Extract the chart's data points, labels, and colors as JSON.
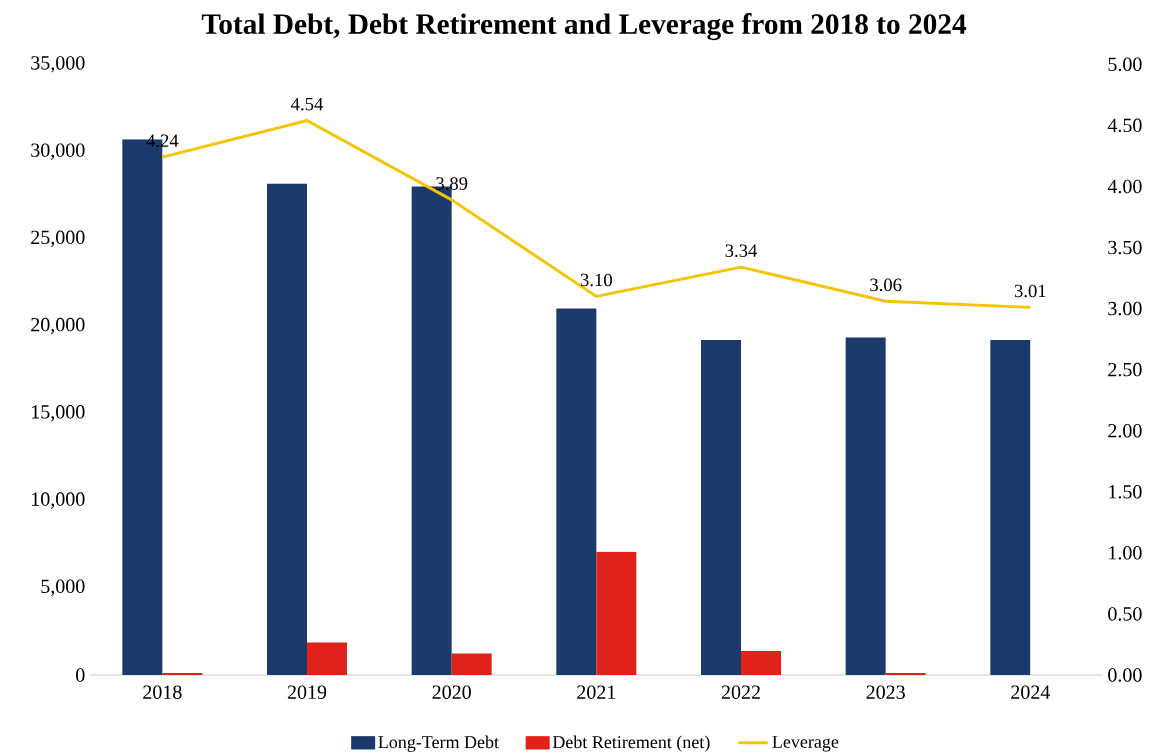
{
  "chart_data": {
    "type": "bar",
    "title": "Total Debt, Debt Retirement and Leverage from 2018 to 2024",
    "categories": [
      "2018",
      "2019",
      "2020",
      "2021",
      "2022",
      "2023",
      "2024"
    ],
    "series": [
      {
        "name": "Long-Term Debt",
        "color": "#1b3a6b",
        "values": [
          30700,
          28150,
          28000,
          21000,
          19200,
          19350,
          19200
        ]
      },
      {
        "name": "Debt Retirement (net)",
        "color": "#e0231a",
        "values": [
          120,
          1860,
          1230,
          7070,
          1380,
          120,
          0
        ]
      },
      {
        "name": "Leverage",
        "type": "line",
        "axis": "y2",
        "color": "#f5c400",
        "values": [
          4.24,
          4.54,
          3.89,
          3.1,
          3.34,
          3.06,
          3.01
        ],
        "value_labels": [
          "4.24",
          "4.54",
          "3.89",
          "3.10",
          "3.34",
          "3.06",
          "3.01"
        ]
      }
    ],
    "ylim": [
      0,
      35000
    ],
    "yticks": [
      {
        "value": 0,
        "label": "0"
      },
      {
        "value": 5000,
        "label": "5,000"
      },
      {
        "value": 10000,
        "label": "10,000"
      },
      {
        "value": 15000,
        "label": "15,000"
      },
      {
        "value": 20000,
        "label": "20,000"
      },
      {
        "value": 25000,
        "label": "25,000"
      },
      {
        "value": 30000,
        "label": "30,000"
      },
      {
        "value": 35000,
        "label": "35,000"
      }
    ],
    "y2lim": [
      0,
      5
    ],
    "y2ticks": [
      {
        "value": 0,
        "label": "0.00"
      },
      {
        "value": 0.5,
        "label": "0.50"
      },
      {
        "value": 1,
        "label": "1.00"
      },
      {
        "value": 1.5,
        "label": "1.50"
      },
      {
        "value": 2,
        "label": "2.00"
      },
      {
        "value": 2.5,
        "label": "2.50"
      },
      {
        "value": 3,
        "label": "3.00"
      },
      {
        "value": 3.5,
        "label": "3.50"
      },
      {
        "value": 4,
        "label": "4.00"
      },
      {
        "value": 4.5,
        "label": "4.50"
      },
      {
        "value": 5,
        "label": "5.00"
      }
    ],
    "legend": "bottom"
  }
}
